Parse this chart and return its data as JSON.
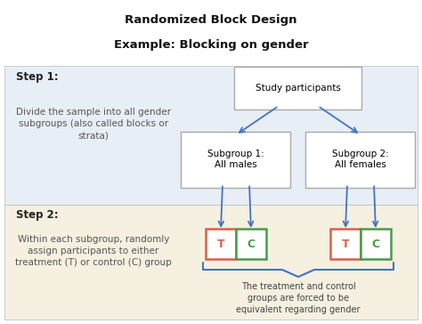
{
  "title_line1": "Randomized Block Design",
  "title_line2": "Example: Blocking on gender",
  "bg_top_color": "#e8eef5",
  "bg_bottom_color": "#f5f0e0",
  "step1_label": "Step 1:",
  "step1_text": "Divide the sample into all gender\nsubgroups (also called blocks or\nstrata)",
  "step2_label": "Step 2:",
  "step2_text": "Within each subgroup, randomly\nassign participants to either\ntreatment (T) or control (C) group",
  "box_study": "Study participants",
  "box_sub1": "Subgroup 1:\nAll males",
  "box_sub2": "Subgroup 2:\nAll females",
  "box_T_color": "#d9604a",
  "box_C_color": "#4a9a4a",
  "bottom_text": "The treatment and control\ngroups are forced to be\nequivalent regarding gender",
  "arrow_color": "#4472c4",
  "box_border_color": "#aaaaaa",
  "text_color": "#555555",
  "step_color": "#222222",
  "title_color": "#111111"
}
